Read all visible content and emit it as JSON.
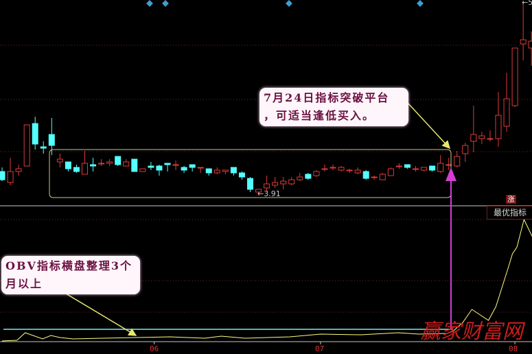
{
  "chart_data": {
    "type": "candlestick",
    "colors": {
      "up": "#e03a3a",
      "down": "#54ffff",
      "obv": "#ffff80",
      "obv_ref": "#7ee8ee",
      "grid": "#8a1c1c",
      "annotation_arrow": "#e8e870",
      "signal_arrow": "#d040d0",
      "marker": "#3aa0d0"
    },
    "x_ticks": [
      {
        "label": "06",
        "index": 18.4
      },
      {
        "label": "07",
        "index": 38.5
      },
      {
        "label": "08",
        "index": 62.0
      }
    ],
    "ohlc": [
      [
        4.07,
        4.1,
        4.0,
        4.01
      ],
      [
        3.99,
        4.17,
        3.97,
        4.07
      ],
      [
        4.07,
        4.12,
        4.04,
        4.09
      ],
      [
        4.11,
        4.41,
        4.11,
        4.41
      ],
      [
        4.42,
        4.47,
        4.23,
        4.27
      ],
      [
        4.25,
        4.29,
        4.2,
        4.24
      ],
      [
        4.34,
        4.46,
        4.19,
        4.26
      ],
      [
        4.14,
        4.2,
        4.1,
        4.16
      ],
      [
        4.14,
        4.14,
        4.07,
        4.09
      ],
      [
        4.1,
        4.12,
        4.06,
        4.07
      ],
      [
        4.05,
        4.22,
        4.05,
        4.13
      ],
      [
        4.12,
        4.17,
        4.07,
        4.11
      ],
      [
        4.13,
        4.16,
        4.11,
        4.13
      ],
      [
        4.13,
        4.16,
        4.11,
        4.14
      ],
      [
        4.18,
        4.18,
        4.11,
        4.12
      ],
      [
        4.11,
        4.16,
        4.11,
        4.14
      ],
      [
        4.16,
        4.16,
        4.07,
        4.07
      ],
      [
        4.07,
        4.09,
        4.07,
        4.09
      ],
      [
        4.11,
        4.14,
        4.08,
        4.1
      ],
      [
        4.11,
        4.12,
        4.04,
        4.08
      ],
      [
        4.13,
        4.13,
        4.07,
        4.12
      ],
      [
        4.12,
        4.15,
        4.08,
        4.12
      ],
      [
        4.1,
        4.11,
        4.06,
        4.08
      ],
      [
        4.12,
        4.12,
        4.07,
        4.1
      ],
      [
        4.1,
        4.1,
        4.06,
        4.1
      ],
      [
        4.09,
        4.09,
        4.04,
        4.06
      ],
      [
        4.06,
        4.1,
        4.05,
        4.08
      ],
      [
        4.07,
        4.08,
        4.05,
        4.08
      ],
      [
        4.1,
        4.1,
        4.04,
        4.06
      ],
      [
        4.06,
        4.07,
        4.01,
        4.03
      ],
      [
        4.02,
        4.03,
        3.92,
        3.94
      ],
      [
        3.92,
        3.94,
        3.91,
        3.94
      ],
      [
        3.95,
        4.04,
        3.93,
        3.98
      ],
      [
        3.97,
        4.03,
        3.95,
        3.99
      ],
      [
        3.98,
        4.03,
        3.94,
        4.0
      ],
      [
        3.98,
        4.03,
        3.97,
        4.01
      ],
      [
        4.01,
        4.06,
        4.0,
        4.03
      ],
      [
        4.05,
        4.06,
        4.01,
        4.02
      ],
      [
        4.04,
        4.08,
        4.03,
        4.07
      ],
      [
        4.09,
        4.12,
        4.07,
        4.09
      ],
      [
        4.1,
        4.12,
        4.08,
        4.1
      ],
      [
        4.08,
        4.11,
        4.07,
        4.1
      ],
      [
        4.08,
        4.09,
        4.06,
        4.08
      ],
      [
        4.06,
        4.1,
        4.05,
        4.08
      ],
      [
        4.07,
        4.08,
        4.01,
        4.02
      ],
      [
        4.03,
        4.04,
        4.01,
        4.03
      ],
      [
        4.01,
        4.06,
        4.01,
        4.05
      ],
      [
        4.04,
        4.1,
        4.04,
        4.09
      ],
      [
        4.11,
        4.13,
        4.09,
        4.11
      ],
      [
        4.12,
        4.12,
        4.09,
        4.1
      ],
      [
        4.09,
        4.11,
        4.07,
        4.09
      ],
      [
        4.08,
        4.1,
        4.07,
        4.1
      ],
      [
        4.11,
        4.11,
        4.07,
        4.08
      ],
      [
        4.07,
        4.19,
        4.06,
        4.13
      ],
      [
        4.12,
        4.17,
        4.08,
        4.12
      ],
      [
        4.11,
        4.22,
        4.1,
        4.18
      ],
      [
        4.2,
        4.28,
        4.14,
        4.26
      ],
      [
        4.29,
        4.55,
        4.21,
        4.34
      ],
      [
        4.31,
        4.36,
        4.27,
        4.33
      ],
      [
        4.31,
        4.37,
        4.29,
        4.31
      ],
      [
        4.31,
        4.65,
        4.25,
        4.48
      ],
      [
        4.4,
        4.79,
        4.36,
        4.6
      ],
      [
        4.55,
        4.97,
        4.54,
        4.97
      ],
      [
        5.0,
        5.3,
        4.88,
        5.03
      ],
      [
        4.97,
        5.09,
        4.84,
        5.02
      ]
    ],
    "low_marker": "3.91",
    "high_marker": "5",
    "obv": [
      [
        0,
        1
      ],
      [
        1.8,
        2
      ],
      [
        2.8,
        13
      ],
      [
        4.9,
        4
      ],
      [
        5.9,
        9
      ],
      [
        7,
        6
      ],
      [
        8.6,
        4
      ],
      [
        12.1,
        5
      ],
      [
        16.3,
        6
      ],
      [
        20.3,
        7
      ],
      [
        24.5,
        5
      ],
      [
        26.5,
        8
      ],
      [
        29.4,
        5
      ],
      [
        34.8,
        7
      ],
      [
        38.5,
        11
      ],
      [
        43.4,
        10
      ],
      [
        47.9,
        13
      ],
      [
        50.4,
        11
      ],
      [
        53.8,
        12
      ],
      [
        54.5,
        15
      ],
      [
        55.7,
        28
      ],
      [
        56.8,
        47
      ],
      [
        58.8,
        31
      ],
      [
        59.7,
        51
      ],
      [
        61.2,
        108
      ],
      [
        61.7,
        128
      ],
      [
        62.25,
        138
      ],
      [
        63.1,
        178
      ],
      [
        64.3,
        148
      ]
    ],
    "obv_reference_level": 18,
    "indicator_name": "最优指标",
    "rise_badge": "涨"
  },
  "annotations": {
    "breakout": {
      "lines": [
        "7月24日指标突破平台",
        "，可适当逢低买入。"
      ]
    },
    "obv_flat": {
      "lines": [
        "OBV指标横盘整理3个",
        "月以上"
      ]
    }
  },
  "watermark": "赢家财富网"
}
